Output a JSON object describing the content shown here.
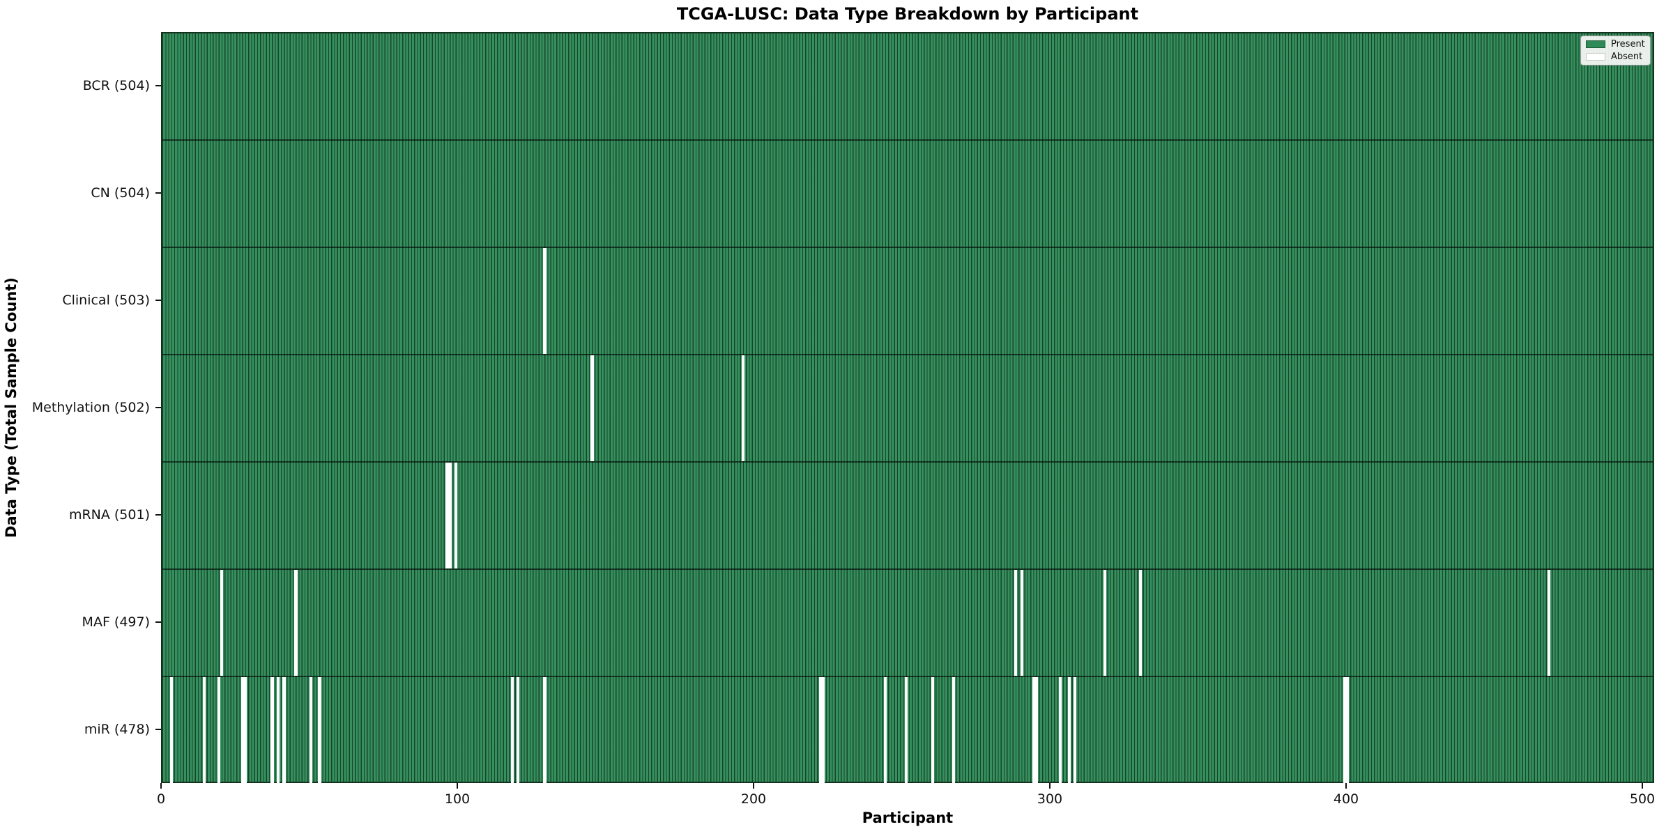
{
  "chart_data": {
    "type": "heatmap",
    "title": "TCGA-LUSC: Data Type Breakdown by Participant",
    "xlabel": "Participant",
    "ylabel": "Data Type (Total Sample Count)",
    "n_participants": 504,
    "x_ticks": [
      0,
      100,
      200,
      300,
      400,
      500
    ],
    "x_range": [
      0,
      504
    ],
    "grid": false,
    "legend_position": "upper right",
    "legend": [
      {
        "label": "Present",
        "color": "#2e8b57"
      },
      {
        "label": "Absent",
        "color": "#ffffff"
      }
    ],
    "rows": [
      {
        "label": "BCR (504)",
        "data_type": "BCR",
        "present_count": 504,
        "absent_participants": []
      },
      {
        "label": "CN (504)",
        "data_type": "CN",
        "present_count": 504,
        "absent_participants": []
      },
      {
        "label": "Clinical (503)",
        "data_type": "Clinical",
        "present_count": 503,
        "absent_participants": [
          129
        ]
      },
      {
        "label": "Methylation (502)",
        "data_type": "Methylation",
        "present_count": 502,
        "absent_participants": [
          145,
          196
        ]
      },
      {
        "label": "mRNA (501)",
        "data_type": "mRNA",
        "present_count": 501,
        "absent_participants": [
          96,
          97,
          99
        ]
      },
      {
        "label": "MAF (497)",
        "data_type": "MAF",
        "present_count": 497,
        "absent_participants": [
          20,
          45,
          288,
          290,
          318,
          330,
          468
        ]
      },
      {
        "label": "miR (478)",
        "data_type": "miR",
        "present_count": 478,
        "absent_participants": [
          3,
          14,
          19,
          27,
          28,
          37,
          39,
          41,
          50,
          53,
          118,
          120,
          129,
          222,
          223,
          244,
          251,
          260,
          267,
          294,
          295,
          303,
          306,
          308,
          399,
          400
        ]
      }
    ],
    "colors": {
      "present": "#2e8b57",
      "absent": "#ffffff",
      "bar_edge": "#14331f",
      "frame": "#14331f",
      "text": "#111111",
      "legend_background": "#faf9f6"
    }
  }
}
